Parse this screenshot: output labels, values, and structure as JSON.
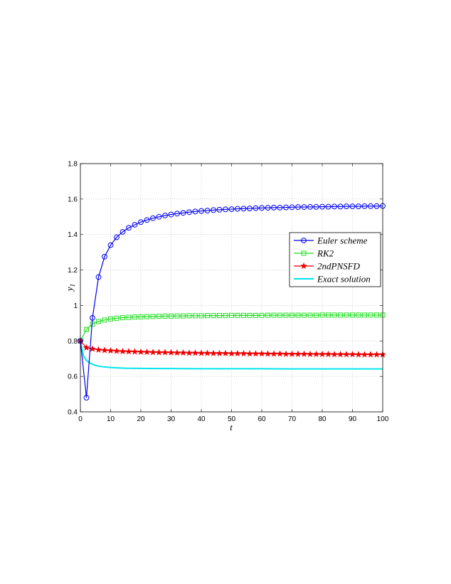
{
  "chart_data": {
    "type": "line",
    "xlabel": "t",
    "ylabel": "y",
    "ylabel_sub": "1",
    "xlim": [
      0,
      100
    ],
    "ylim": [
      0.4,
      1.8
    ],
    "xticks": [
      0,
      10,
      20,
      30,
      40,
      50,
      60,
      70,
      80,
      90,
      100
    ],
    "yticks": [
      0.4,
      0.6,
      0.8,
      1,
      1.2,
      1.4,
      1.6,
      1.8
    ],
    "grid": true,
    "legend_position": "right-center",
    "series": [
      {
        "name": "Euler scheme",
        "color": "#0000ee",
        "marker": "circle",
        "x": [
          0,
          2,
          4,
          6,
          8,
          10,
          12,
          14,
          16,
          18,
          20,
          22,
          24,
          26,
          28,
          30,
          32,
          34,
          36,
          38,
          40,
          42,
          44,
          46,
          48,
          50,
          52,
          54,
          56,
          58,
          60,
          62,
          64,
          66,
          68,
          70,
          72,
          74,
          76,
          78,
          80,
          82,
          84,
          86,
          88,
          90,
          92,
          94,
          96,
          98,
          100
        ],
        "y": [
          0.8,
          0.48,
          0.93,
          1.16,
          1.275,
          1.34,
          1.385,
          1.415,
          1.438,
          1.455,
          1.47,
          1.482,
          1.492,
          1.5,
          1.507,
          1.513,
          1.518,
          1.522,
          1.526,
          1.53,
          1.533,
          1.535,
          1.538,
          1.54,
          1.542,
          1.543,
          1.545,
          1.546,
          1.547,
          1.549,
          1.55,
          1.551,
          1.552,
          1.552,
          1.553,
          1.554,
          1.555,
          1.555,
          1.556,
          1.556,
          1.557,
          1.557,
          1.558,
          1.558,
          1.559,
          1.559,
          1.559,
          1.56,
          1.56,
          1.56,
          1.561
        ]
      },
      {
        "name": "RK2",
        "color": "#22dd22",
        "marker": "square",
        "x": [
          0,
          2,
          4,
          6,
          8,
          10,
          12,
          14,
          16,
          18,
          20,
          22,
          24,
          26,
          28,
          30,
          32,
          34,
          36,
          38,
          40,
          42,
          44,
          46,
          48,
          50,
          52,
          54,
          56,
          58,
          60,
          62,
          64,
          66,
          68,
          70,
          72,
          74,
          76,
          78,
          80,
          82,
          84,
          86,
          88,
          90,
          92,
          94,
          96,
          98,
          100
        ],
        "y": [
          0.8,
          0.865,
          0.895,
          0.91,
          0.918,
          0.924,
          0.928,
          0.931,
          0.933,
          0.935,
          0.936,
          0.937,
          0.938,
          0.939,
          0.94,
          0.94,
          0.941,
          0.941,
          0.942,
          0.942,
          0.942,
          0.943,
          0.943,
          0.943,
          0.943,
          0.944,
          0.944,
          0.944,
          0.944,
          0.944,
          0.944,
          0.945,
          0.945,
          0.945,
          0.945,
          0.945,
          0.945,
          0.945,
          0.945,
          0.945,
          0.946,
          0.946,
          0.946,
          0.946,
          0.946,
          0.946,
          0.946,
          0.946,
          0.946,
          0.946,
          0.946
        ]
      },
      {
        "name": "2ndPNSFD",
        "color": "#ee0000",
        "marker": "star",
        "x": [
          0,
          2,
          4,
          6,
          8,
          10,
          12,
          14,
          16,
          18,
          20,
          22,
          24,
          26,
          28,
          30,
          32,
          34,
          36,
          38,
          40,
          42,
          44,
          46,
          48,
          50,
          52,
          54,
          56,
          58,
          60,
          62,
          64,
          66,
          68,
          70,
          72,
          74,
          76,
          78,
          80,
          82,
          84,
          86,
          88,
          90,
          92,
          94,
          96,
          98,
          100
        ],
        "y": [
          0.8,
          0.762,
          0.755,
          0.75,
          0.747,
          0.745,
          0.743,
          0.741,
          0.74,
          0.739,
          0.738,
          0.737,
          0.736,
          0.735,
          0.735,
          0.734,
          0.733,
          0.733,
          0.732,
          0.732,
          0.731,
          0.731,
          0.73,
          0.73,
          0.73,
          0.729,
          0.729,
          0.729,
          0.728,
          0.728,
          0.728,
          0.727,
          0.727,
          0.727,
          0.726,
          0.726,
          0.726,
          0.726,
          0.725,
          0.725,
          0.725,
          0.725,
          0.724,
          0.724,
          0.724,
          0.724,
          0.723,
          0.723,
          0.723,
          0.723,
          0.723
        ]
      },
      {
        "name": "Exact solution",
        "color": "#00e5ee",
        "marker": "none",
        "x": [
          0,
          1,
          2,
          3,
          4,
          5,
          6,
          8,
          10,
          12,
          15,
          20,
          25,
          30,
          40,
          50,
          60,
          70,
          80,
          90,
          100
        ],
        "y": [
          0.8,
          0.715,
          0.69,
          0.677,
          0.668,
          0.662,
          0.658,
          0.653,
          0.65,
          0.648,
          0.646,
          0.645,
          0.644,
          0.644,
          0.643,
          0.643,
          0.643,
          0.642,
          0.642,
          0.642,
          0.642
        ]
      }
    ]
  }
}
